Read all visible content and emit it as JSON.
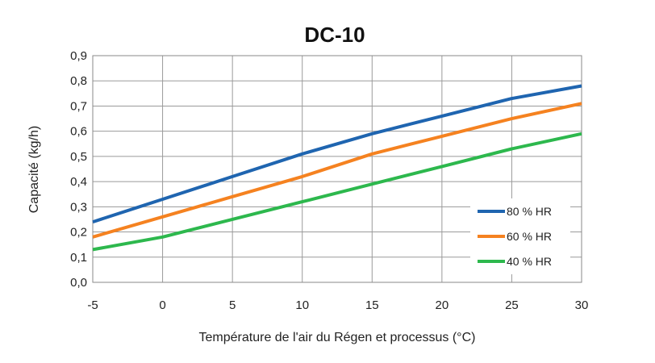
{
  "chart_data": {
    "type": "line",
    "title": "DC-10",
    "xlabel": "Température de l'air du Régen et processus (°C)",
    "ylabel": "Capacité (kg/h)",
    "xlim": [
      -5,
      30
    ],
    "ylim": [
      0,
      0.9
    ],
    "x_ticks": [
      -5,
      0,
      5,
      10,
      15,
      20,
      25,
      30
    ],
    "x_tick_labels": [
      "-5",
      "0",
      "5",
      "10",
      "15",
      "20",
      "25",
      "30"
    ],
    "y_ticks": [
      0,
      0.1,
      0.2,
      0.3,
      0.4,
      0.5,
      0.6,
      0.7,
      0.8,
      0.9
    ],
    "y_tick_labels": [
      "0,0",
      "0,1",
      "0,2",
      "0,3",
      "0,4",
      "0,5",
      "0,6",
      "0,7",
      "0,8",
      "0,9"
    ],
    "grid": true,
    "legend_position": "lower-right",
    "x": [
      -5,
      0,
      5,
      10,
      15,
      20,
      25,
      30
    ],
    "series": [
      {
        "name": "80 % HR",
        "color": "#1f65b0",
        "values": [
          0.24,
          0.33,
          0.42,
          0.51,
          0.59,
          0.66,
          0.73,
          0.78
        ]
      },
      {
        "name": "60 % HR",
        "color": "#f58220",
        "values": [
          0.18,
          0.26,
          0.34,
          0.42,
          0.51,
          0.58,
          0.65,
          0.71
        ]
      },
      {
        "name": "40 % HR",
        "color": "#2db84d",
        "values": [
          0.13,
          0.18,
          0.25,
          0.32,
          0.39,
          0.46,
          0.53,
          0.59
        ]
      }
    ]
  }
}
